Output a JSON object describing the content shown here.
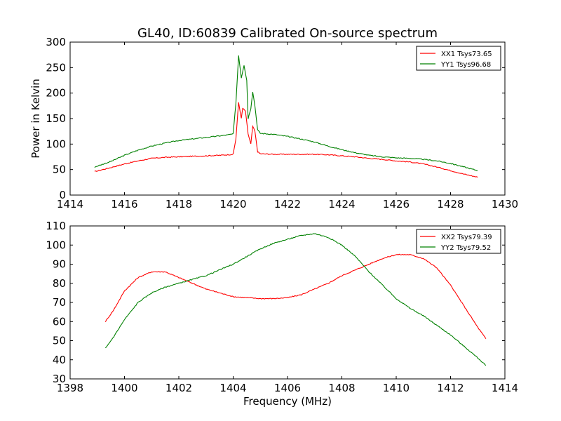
{
  "colors": {
    "xx": "#ff0000",
    "yy": "#008000",
    "frame": "#000000",
    "background": "#ffffff"
  },
  "chart_data": [
    {
      "type": "line",
      "title": "GL40, ID:60839 Calibrated On-source spectrum",
      "xlabel": "",
      "ylabel": "Power in Kelvin",
      "xlim": [
        1414,
        1430
      ],
      "ylim": [
        0,
        300
      ],
      "xticks": [
        "1414",
        "1416",
        "1418",
        "1420",
        "1422",
        "1424",
        "1426",
        "1428",
        "1430"
      ],
      "yticks": [
        "0",
        "50",
        "100",
        "150",
        "200",
        "250",
        "300"
      ],
      "grid": false,
      "legend_position": "top-right",
      "series": [
        {
          "name": "XX1 Tsys73.65",
          "color": "#ff0000",
          "points": [
            [
              1414.9,
              46
            ],
            [
              1415.5,
              54
            ],
            [
              1416,
              61
            ],
            [
              1416.5,
              67
            ],
            [
              1417,
              72
            ],
            [
              1417.5,
              74
            ],
            [
              1418,
              75
            ],
            [
              1418.5,
              76
            ],
            [
              1419,
              77
            ],
            [
              1419.5,
              78
            ],
            [
              1419.8,
              79
            ],
            [
              1420,
              80
            ],
            [
              1420.1,
              110
            ],
            [
              1420.2,
              182
            ],
            [
              1420.3,
              150
            ],
            [
              1420.35,
              170
            ],
            [
              1420.45,
              165
            ],
            [
              1420.55,
              120
            ],
            [
              1420.65,
              100
            ],
            [
              1420.72,
              135
            ],
            [
              1420.8,
              125
            ],
            [
              1420.9,
              85
            ],
            [
              1421,
              81
            ],
            [
              1421.5,
              80
            ],
            [
              1422,
              80
            ],
            [
              1422.5,
              80
            ],
            [
              1423,
              80
            ],
            [
              1423.5,
              79
            ],
            [
              1424,
              77
            ],
            [
              1424.5,
              75
            ],
            [
              1425,
              72
            ],
            [
              1425.5,
              70
            ],
            [
              1426,
              67
            ],
            [
              1426.5,
              65
            ],
            [
              1427,
              61
            ],
            [
              1427.5,
              55
            ],
            [
              1428,
              48
            ],
            [
              1428.5,
              41
            ],
            [
              1429,
              35
            ]
          ]
        },
        {
          "name": "YY1 Tsys96.68",
          "color": "#008000",
          "points": [
            [
              1414.9,
              55
            ],
            [
              1415.5,
              66
            ],
            [
              1416,
              78
            ],
            [
              1416.5,
              88
            ],
            [
              1417,
              96
            ],
            [
              1417.5,
              102
            ],
            [
              1418,
              107
            ],
            [
              1418.5,
              110
            ],
            [
              1419,
              113
            ],
            [
              1419.5,
              116
            ],
            [
              1419.8,
              118
            ],
            [
              1420,
              120
            ],
            [
              1420.1,
              180
            ],
            [
              1420.2,
              274
            ],
            [
              1420.3,
              230
            ],
            [
              1420.4,
              255
            ],
            [
              1420.5,
              225
            ],
            [
              1420.55,
              150
            ],
            [
              1420.65,
              170
            ],
            [
              1420.72,
              203
            ],
            [
              1420.8,
              175
            ],
            [
              1420.9,
              128
            ],
            [
              1421,
              121
            ],
            [
              1421.5,
              119
            ],
            [
              1422,
              115
            ],
            [
              1422.5,
              110
            ],
            [
              1423,
              104
            ],
            [
              1423.5,
              96
            ],
            [
              1424,
              89
            ],
            [
              1424.5,
              83
            ],
            [
              1425,
              78
            ],
            [
              1425.5,
              75
            ],
            [
              1426,
              73
            ],
            [
              1426.5,
              72
            ],
            [
              1427,
              70
            ],
            [
              1427.5,
              67
            ],
            [
              1428,
              62
            ],
            [
              1428.5,
              55
            ],
            [
              1429,
              48
            ]
          ]
        }
      ]
    },
    {
      "type": "line",
      "title": "",
      "xlabel": "Frequency (MHz)",
      "ylabel": "",
      "xlim": [
        1398,
        1414
      ],
      "ylim": [
        30,
        110
      ],
      "xticks": [
        "1398",
        "1400",
        "1402",
        "1404",
        "1406",
        "1408",
        "1410",
        "1412",
        "1414"
      ],
      "yticks": [
        "30",
        "40",
        "50",
        "60",
        "70",
        "80",
        "90",
        "100",
        "110"
      ],
      "grid": false,
      "legend_position": "top-right",
      "series": [
        {
          "name": "XX2 Tsys79.39",
          "color": "#ff0000",
          "points": [
            [
              1399.3,
              60
            ],
            [
              1399.6,
              66
            ],
            [
              1400,
              76
            ],
            [
              1400.5,
              83
            ],
            [
              1401,
              86
            ],
            [
              1401.5,
              86
            ],
            [
              1402,
              83
            ],
            [
              1402.5,
              80
            ],
            [
              1403,
              77
            ],
            [
              1403.5,
              75
            ],
            [
              1404,
              73
            ],
            [
              1404.5,
              72.5
            ],
            [
              1405,
              72
            ],
            [
              1405.5,
              72
            ],
            [
              1406,
              72.5
            ],
            [
              1406.5,
              74
            ],
            [
              1407,
              77
            ],
            [
              1407.5,
              80
            ],
            [
              1408,
              84
            ],
            [
              1408.5,
              87
            ],
            [
              1409,
              90
            ],
            [
              1409.5,
              93
            ],
            [
              1410,
              95
            ],
            [
              1410.5,
              95
            ],
            [
              1411,
              93
            ],
            [
              1411.5,
              88
            ],
            [
              1412,
              79
            ],
            [
              1412.5,
              68
            ],
            [
              1413,
              57
            ],
            [
              1413.3,
              51
            ]
          ]
        },
        {
          "name": "YY2 Tsys79.52",
          "color": "#008000",
          "points": [
            [
              1399.3,
              46
            ],
            [
              1399.6,
              52
            ],
            [
              1400,
              61
            ],
            [
              1400.5,
              70
            ],
            [
              1401,
              75
            ],
            [
              1401.5,
              78
            ],
            [
              1402,
              80
            ],
            [
              1402.5,
              82
            ],
            [
              1403,
              84
            ],
            [
              1403.5,
              87
            ],
            [
              1404,
              90
            ],
            [
              1404.5,
              94
            ],
            [
              1405,
              98
            ],
            [
              1405.5,
              101
            ],
            [
              1406,
              103
            ],
            [
              1406.5,
              105
            ],
            [
              1407,
              106
            ],
            [
              1407.5,
              104
            ],
            [
              1408,
              100
            ],
            [
              1408.5,
              94
            ],
            [
              1409,
              86
            ],
            [
              1409.5,
              79
            ],
            [
              1410,
              72
            ],
            [
              1410.5,
              67
            ],
            [
              1411,
              63
            ],
            [
              1411.5,
              58
            ],
            [
              1412,
              53
            ],
            [
              1412.5,
              47
            ],
            [
              1413,
              41
            ],
            [
              1413.3,
              37
            ]
          ]
        }
      ]
    }
  ]
}
